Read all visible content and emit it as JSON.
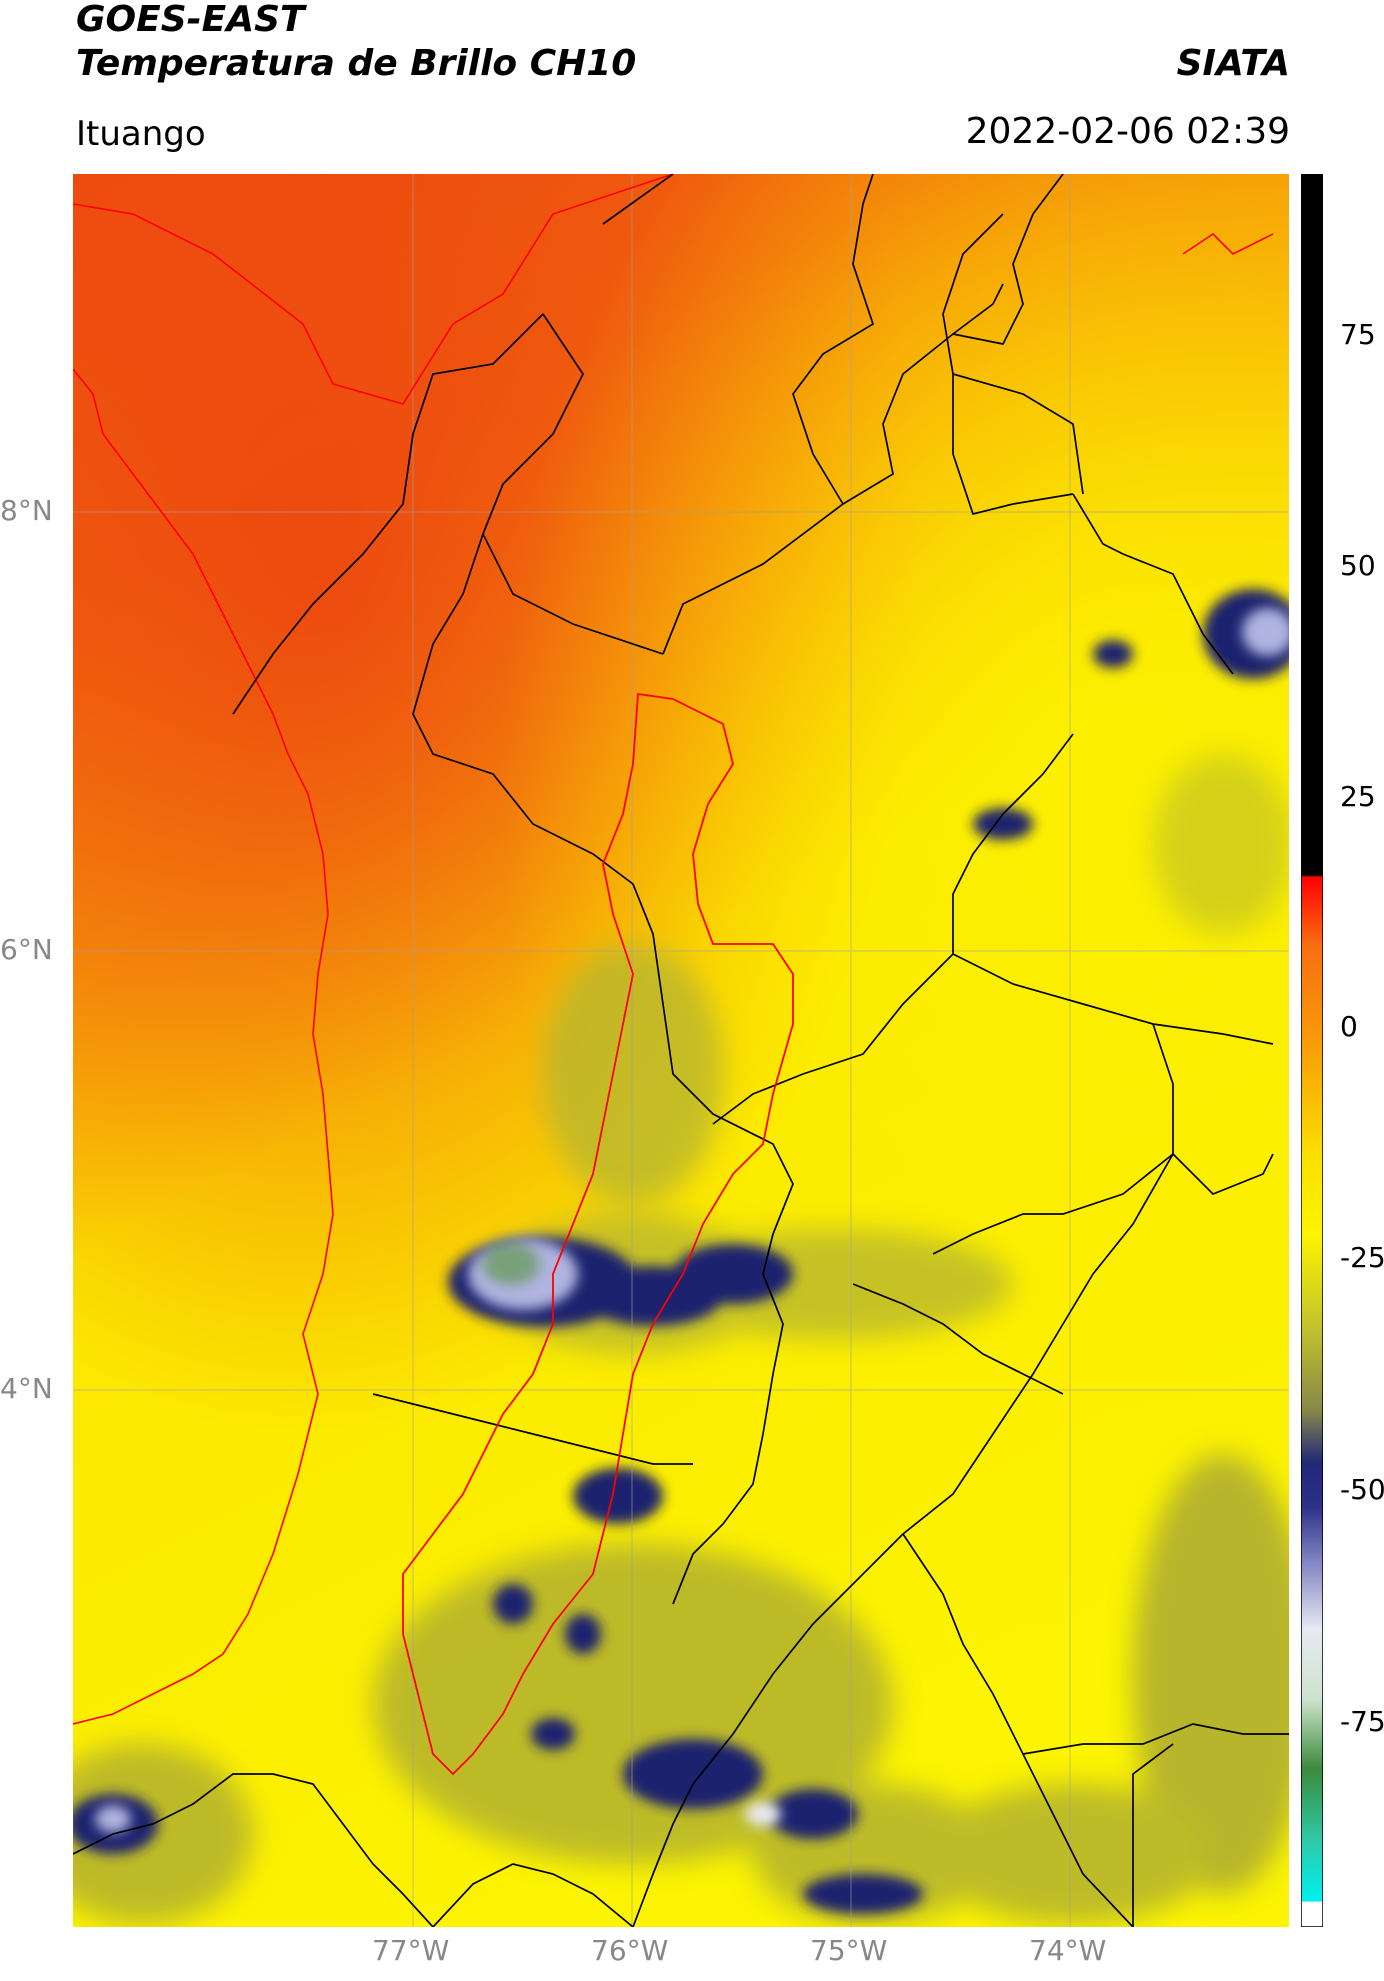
{
  "header": {
    "satellite": "GOES-EAST",
    "product": "Temperatura de Brillo CH10",
    "organization": "SIATA",
    "region": "Ituango",
    "datetime": "2022-02-06 02:39"
  },
  "map": {
    "lat_labels": [
      "8°N",
      "6°N",
      "4°N"
    ],
    "lon_labels": [
      "77°W",
      "76°W",
      "75°W",
      "74°W"
    ],
    "colors": {
      "warm_red": "#f05a10",
      "orange": "#f89a08",
      "yellow": "#fcf000",
      "olive": "#b4b432",
      "navy": "#1c206e",
      "lavender": "#b0b4e0",
      "basin_outline": "#ff0000",
      "boundary": "#000000"
    }
  },
  "colorbar": {
    "ticks": [
      "75",
      "50",
      "25",
      "0",
      "-25",
      "-50",
      "-75"
    ]
  }
}
